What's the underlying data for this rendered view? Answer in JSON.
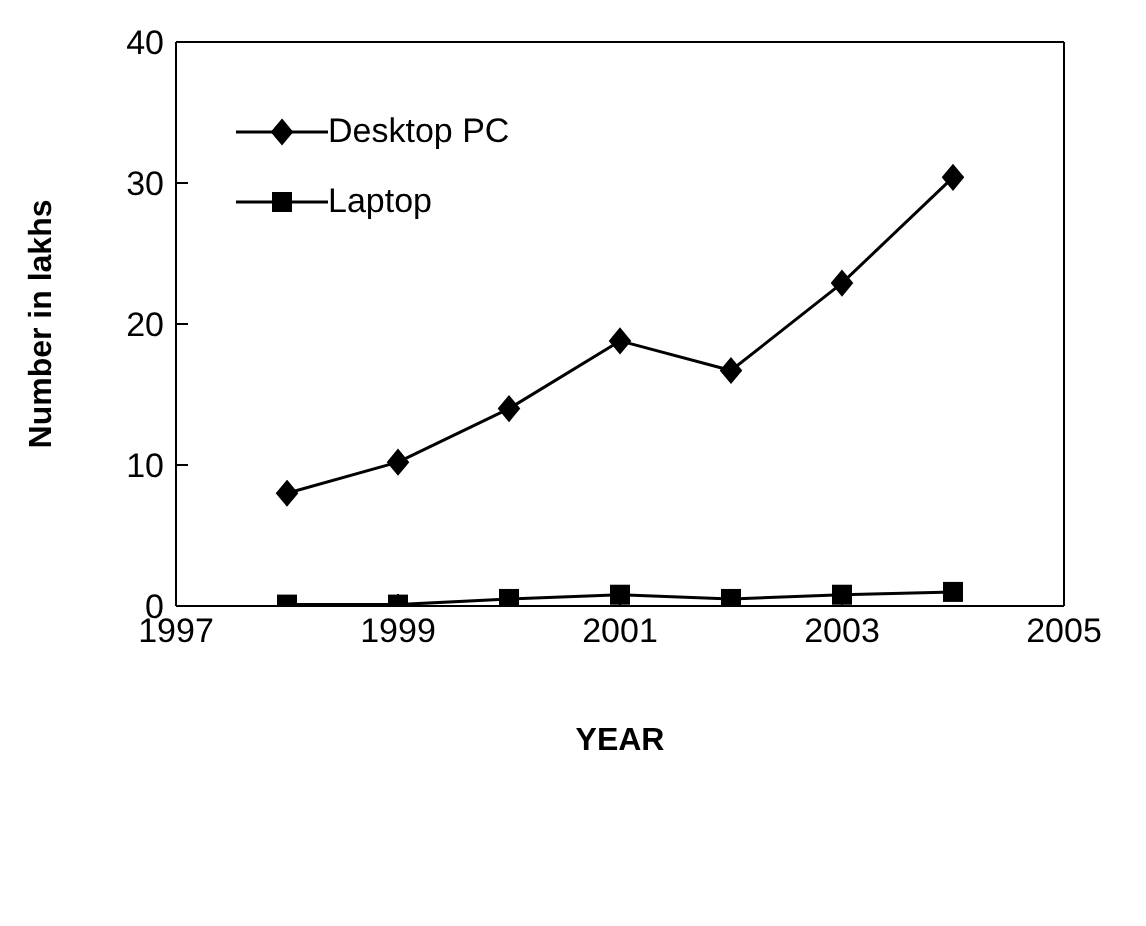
{
  "chart_data": {
    "type": "line",
    "xlabel": "YEAR",
    "ylabel": "Number in lakhs",
    "x": [
      1998,
      1999,
      2000,
      2001,
      2002,
      2003,
      2004
    ],
    "series": [
      {
        "name": "Desktop PC",
        "color": "#000000",
        "marker": "diamond",
        "values": [
          8,
          10.2,
          14,
          18.8,
          16.7,
          22.9,
          30.4
        ]
      },
      {
        "name": "Laptop",
        "color": "#000000",
        "marker": "square",
        "values": [
          0.1,
          0.1,
          0.5,
          0.8,
          0.5,
          0.8,
          1.0
        ]
      }
    ],
    "xlim": [
      1997,
      2005
    ],
    "xticks": [
      1997,
      1999,
      2001,
      2003,
      2005
    ],
    "ylim": [
      0,
      40
    ],
    "yticks": [
      0,
      10,
      20,
      30,
      40
    ],
    "grid": false,
    "legend": "top left",
    "line_style": "solid"
  }
}
